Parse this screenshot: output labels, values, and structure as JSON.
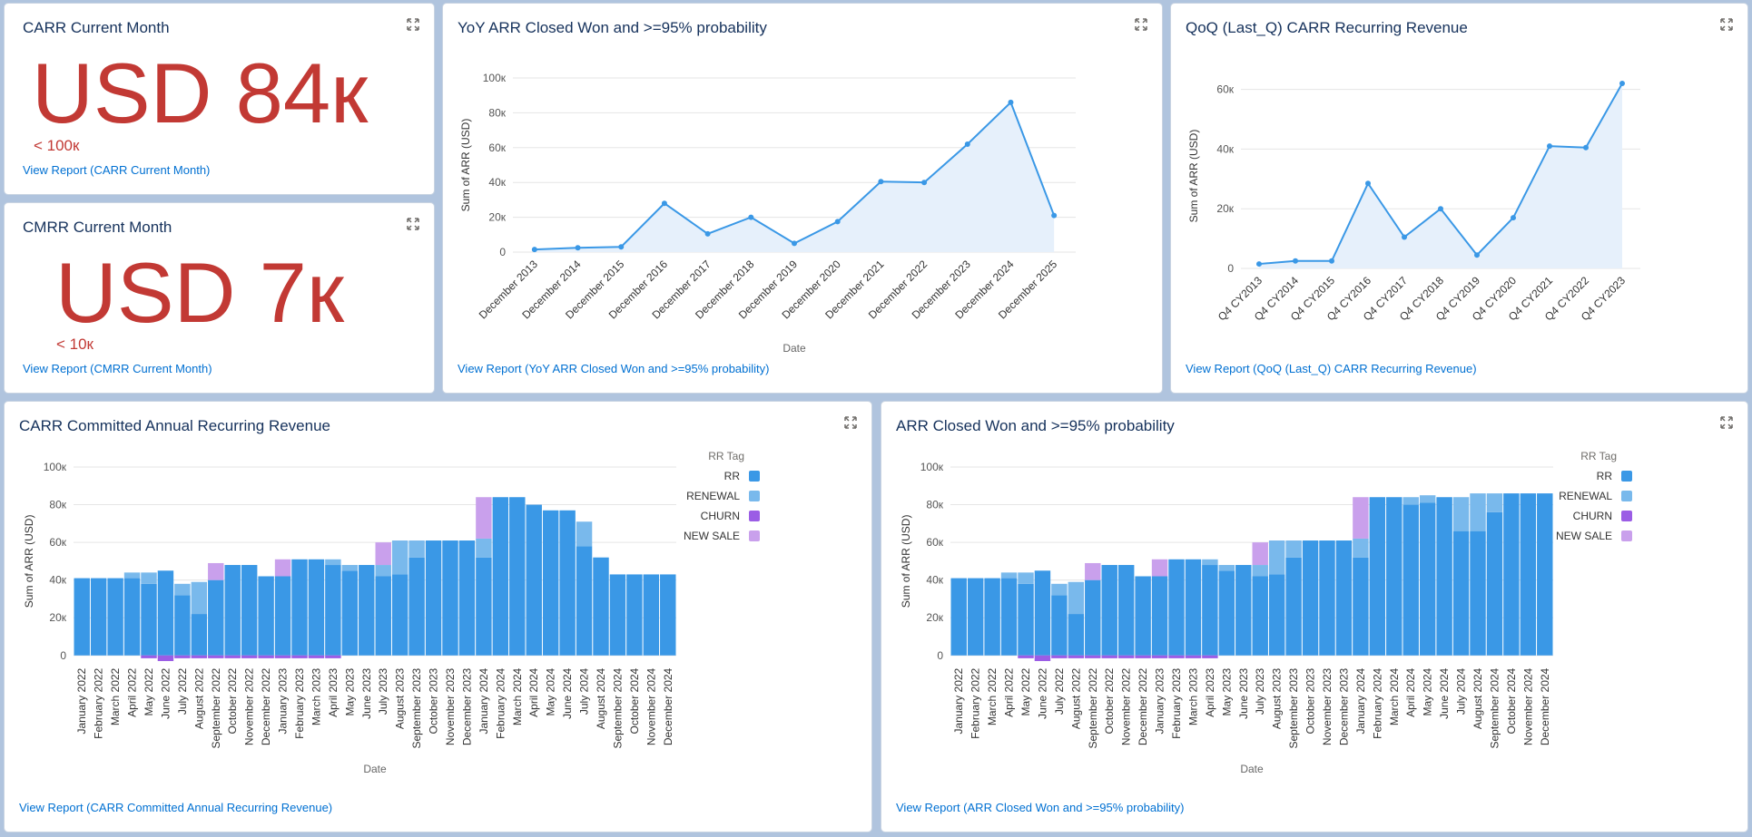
{
  "colors": {
    "metric_red": "#c23934",
    "line_blue": "#3a98e6",
    "rr": "#3a98e6",
    "renewal": "#79b9ec",
    "churn": "#9b5de5",
    "new_sale": "#c9a0ec",
    "link": "#0070d2"
  },
  "cards": {
    "carr_month": {
      "title": "CARR Current Month",
      "value": "USD 84к",
      "target": "< 100к",
      "link": "View Report (CARR Current Month)"
    },
    "cmrr_month": {
      "title": "CMRR Current Month",
      "value": "USD 7к",
      "target": "< 10к",
      "link": "View Report (CMRR Current Month)"
    },
    "yoy": {
      "title": "YoY ARR Closed Won and >=95% probability",
      "link": "View Report (YoY ARR Closed Won and >=95% probability)"
    },
    "qoq": {
      "title": "QoQ (Last_Q) CARR Recurring Revenue",
      "link": "View Report (QoQ (Last_Q) CARR Recurring Revenue)"
    },
    "carr_committed": {
      "title": "CARR Committed Annual Recurring Revenue",
      "link": "View Report (CARR Committed Annual Recurring Revenue)"
    },
    "arr_closed": {
      "title": "ARR Closed Won and >=95% probability",
      "link": "View Report (ARR Closed Won and >=95% probability)"
    }
  },
  "chart_data": [
    {
      "id": "yoy",
      "type": "area",
      "title": "YoY ARR Closed Won and >=95% probability",
      "xlabel": "Date",
      "ylabel": "Sum of ARR (USD)",
      "ylim": [
        0,
        100000
      ],
      "yticks": [
        0,
        20000,
        40000,
        60000,
        80000,
        100000
      ],
      "ytick_labels": [
        "0",
        "20к",
        "40к",
        "60к",
        "80к",
        "100к"
      ],
      "categories": [
        "December 2013",
        "December 2014",
        "December 2015",
        "December 2016",
        "December 2017",
        "December 2018",
        "December 2019",
        "December 2020",
        "December 2021",
        "December 2022",
        "December 2023",
        "December 2024",
        "December 2025"
      ],
      "values": [
        1500,
        2500,
        3000,
        28000,
        10500,
        20000,
        5000,
        17500,
        40500,
        40000,
        62000,
        86000,
        21000
      ]
    },
    {
      "id": "qoq",
      "type": "area",
      "title": "QoQ (Last_Q) CARR Recurring Revenue",
      "xlabel": "Date",
      "ylabel": "Sum of ARR (USD)",
      "ylim": [
        0,
        62000
      ],
      "yticks": [
        0,
        20000,
        40000,
        60000
      ],
      "ytick_labels": [
        "0",
        "20к",
        "40к",
        "60к"
      ],
      "categories": [
        "Q4 CY2013",
        "Q4 CY2014",
        "Q4 CY2015",
        "Q4 CY2016",
        "Q4 CY2017",
        "Q4 CY2018",
        "Q4 CY2019",
        "Q4 CY2020",
        "Q4 CY2021",
        "Q4 CY2022",
        "Q4 CY2023"
      ],
      "values": [
        1500,
        2500,
        2500,
        28500,
        10500,
        20000,
        4500,
        17000,
        41000,
        40500,
        62000
      ]
    },
    {
      "id": "carr_committed",
      "type": "bar",
      "stacked": true,
      "title": "CARR Committed Annual Recurring Revenue",
      "xlabel": "Date",
      "ylabel": "Sum of ARR (USD)",
      "ylim": [
        -3000,
        100000
      ],
      "yticks": [
        0,
        20000,
        40000,
        60000,
        80000,
        100000
      ],
      "ytick_labels": [
        "0",
        "20к",
        "40к",
        "60к",
        "80к",
        "100к"
      ],
      "legend_title": "RR Tag",
      "legend_position": "right",
      "categories": [
        "January 2022",
        "February 2022",
        "March 2022",
        "April 2022",
        "May 2022",
        "June 2022",
        "July 2022",
        "August 2022",
        "September 2022",
        "October 2022",
        "November 2022",
        "December 2022",
        "January 2023",
        "February 2023",
        "March 2023",
        "April 2023",
        "May 2023",
        "June 2023",
        "July 2023",
        "August 2023",
        "September 2023",
        "October 2023",
        "November 2023",
        "December 2023",
        "January 2024",
        "February 2024",
        "March 2024",
        "April 2024",
        "May 2024",
        "June 2024",
        "July 2024",
        "August 2024",
        "September 2024",
        "October 2024",
        "November 2024",
        "December 2024"
      ],
      "series": [
        {
          "name": "RR",
          "values": [
            41000,
            41000,
            41000,
            41000,
            38000,
            45000,
            32000,
            22000,
            40000,
            48000,
            48000,
            42000,
            42000,
            51000,
            51000,
            48000,
            45000,
            48000,
            42000,
            43000,
            52000,
            61000,
            61000,
            61000,
            52000,
            84000,
            84000,
            80000,
            77000,
            77000,
            58000,
            52000,
            43000,
            43000,
            43000,
            43000
          ]
        },
        {
          "name": "RENEWAL",
          "values": [
            0,
            0,
            0,
            3000,
            6000,
            0,
            6000,
            17000,
            0,
            0,
            0,
            0,
            0,
            0,
            0,
            3000,
            3000,
            0,
            6000,
            18000,
            9000,
            0,
            0,
            0,
            10000,
            0,
            0,
            0,
            0,
            0,
            13000,
            0,
            0,
            0,
            0,
            0
          ]
        },
        {
          "name": "CHURN",
          "values": [
            0,
            0,
            0,
            0,
            -1500,
            -3000,
            -1500,
            -1500,
            -1500,
            -1500,
            -1500,
            -1500,
            -1500,
            -1500,
            -1500,
            -1500,
            0,
            0,
            0,
            0,
            0,
            0,
            0,
            0,
            0,
            0,
            0,
            0,
            0,
            0,
            0,
            0,
            0,
            0,
            0,
            0
          ]
        },
        {
          "name": "NEW SALE",
          "values": [
            0,
            0,
            0,
            0,
            0,
            0,
            0,
            0,
            9000,
            0,
            0,
            0,
            9000,
            0,
            0,
            0,
            0,
            0,
            12000,
            0,
            0,
            0,
            0,
            0,
            22000,
            0,
            0,
            0,
            0,
            0,
            0,
            0,
            0,
            0,
            0,
            0
          ]
        }
      ]
    },
    {
      "id": "arr_closed",
      "type": "bar",
      "stacked": true,
      "title": "ARR Closed Won and >=95% probability",
      "xlabel": "Date",
      "ylabel": "Sum of ARR (USD)",
      "ylim": [
        -3000,
        100000
      ],
      "yticks": [
        0,
        20000,
        40000,
        60000,
        80000,
        100000
      ],
      "ytick_labels": [
        "0",
        "20к",
        "40к",
        "60к",
        "80к",
        "100к"
      ],
      "legend_title": "RR Tag",
      "legend_position": "right",
      "categories": [
        "January 2022",
        "February 2022",
        "March 2022",
        "April 2022",
        "May 2022",
        "June 2022",
        "July 2022",
        "August 2022",
        "September 2022",
        "October 2022",
        "November 2022",
        "December 2022",
        "January 2023",
        "February 2023",
        "March 2023",
        "April 2023",
        "May 2023",
        "June 2023",
        "July 2023",
        "August 2023",
        "September 2023",
        "October 2023",
        "November 2023",
        "December 2023",
        "January 2024",
        "February 2024",
        "March 2024",
        "April 2024",
        "May 2024",
        "June 2024",
        "July 2024",
        "August 2024",
        "September 2024",
        "October 2024",
        "November 2024",
        "December 2024"
      ],
      "series": [
        {
          "name": "RR",
          "values": [
            41000,
            41000,
            41000,
            41000,
            38000,
            45000,
            32000,
            22000,
            40000,
            48000,
            48000,
            42000,
            42000,
            51000,
            51000,
            48000,
            45000,
            48000,
            42000,
            43000,
            52000,
            61000,
            61000,
            61000,
            52000,
            84000,
            84000,
            80000,
            81000,
            84000,
            66000,
            66000,
            76000,
            86000,
            86000,
            86000
          ]
        },
        {
          "name": "RENEWAL",
          "values": [
            0,
            0,
            0,
            3000,
            6000,
            0,
            6000,
            17000,
            0,
            0,
            0,
            0,
            0,
            0,
            0,
            3000,
            3000,
            0,
            6000,
            18000,
            9000,
            0,
            0,
            0,
            10000,
            0,
            0,
            4000,
            4000,
            0,
            18000,
            20000,
            10000,
            0,
            0,
            0
          ]
        },
        {
          "name": "CHURN",
          "values": [
            0,
            0,
            0,
            0,
            -1500,
            -3000,
            -1500,
            -1500,
            -1500,
            -1500,
            -1500,
            -1500,
            -1500,
            -1500,
            -1500,
            -1500,
            0,
            0,
            0,
            0,
            0,
            0,
            0,
            0,
            0,
            0,
            0,
            0,
            0,
            0,
            0,
            0,
            0,
            0,
            0,
            0
          ]
        },
        {
          "name": "NEW SALE",
          "values": [
            0,
            0,
            0,
            0,
            0,
            0,
            0,
            0,
            9000,
            0,
            0,
            0,
            9000,
            0,
            0,
            0,
            0,
            0,
            12000,
            0,
            0,
            0,
            0,
            0,
            22000,
            0,
            0,
            0,
            0,
            0,
            0,
            0,
            0,
            0,
            0,
            0
          ]
        }
      ]
    }
  ]
}
